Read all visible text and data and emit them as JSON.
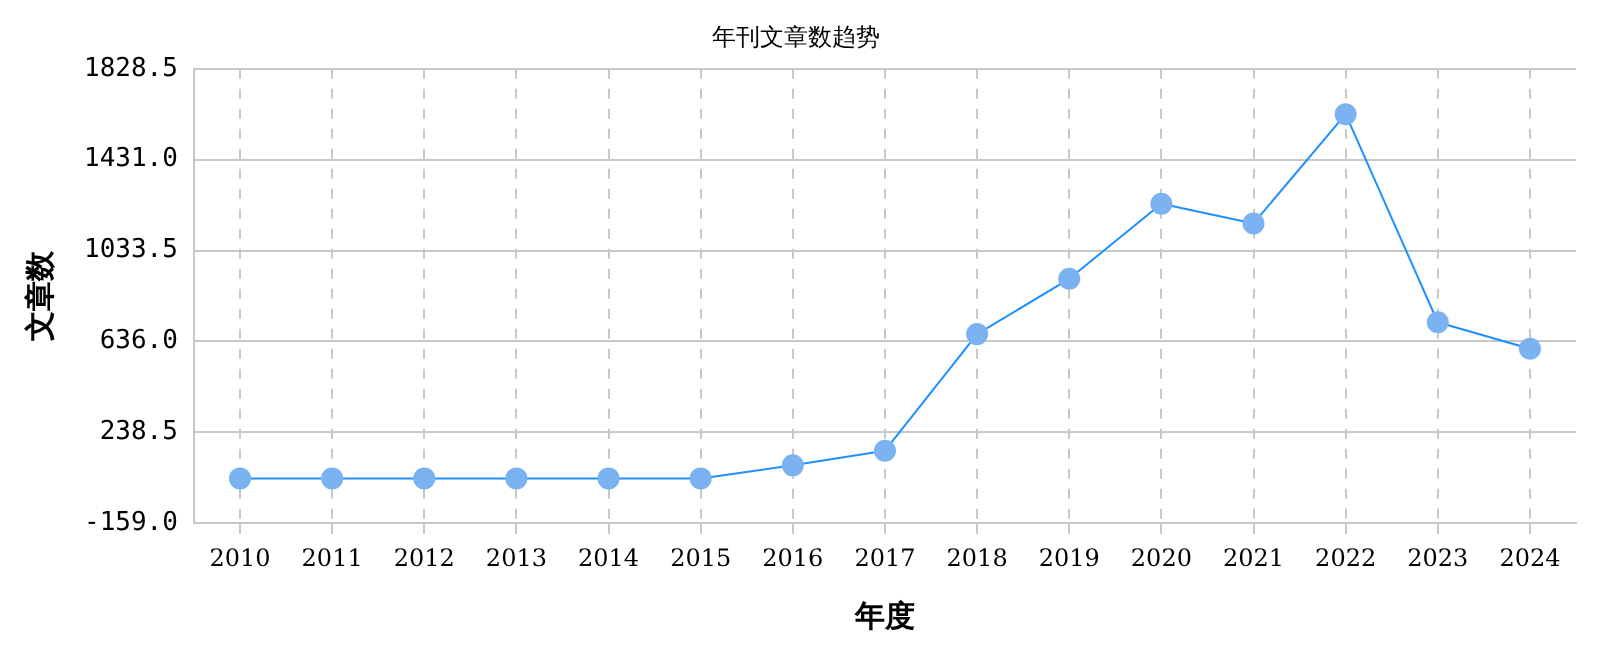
{
  "chart_data": {
    "type": "line",
    "title": "年刊文章数趋势",
    "xlabel": "年度",
    "ylabel": "文章数",
    "categories": [
      "2010",
      "2011",
      "2012",
      "2013",
      "2014",
      "2015",
      "2016",
      "2017",
      "2018",
      "2019",
      "2020",
      "2021",
      "2022",
      "2023",
      "2024"
    ],
    "series": [
      {
        "color": "#1e90ff",
        "values": [
          37,
          37,
          37,
          37,
          37,
          37,
          94,
          158,
          668,
          910,
          1238,
          1152,
          1630,
          720,
          604
        ]
      }
    ],
    "ylim": [
      -159.0,
      1828.5
    ],
    "yticks": [
      {
        "value": -159,
        "label": "-159.0"
      },
      {
        "value": 238.5,
        "label": "238.5"
      },
      {
        "value": 636,
        "label": "636.0"
      },
      {
        "value": 1033.5,
        "label": "1033.5"
      },
      {
        "value": 1431,
        "label": "1431.0"
      },
      {
        "value": 1828.5,
        "label": "1828.5"
      }
    ],
    "grid": true,
    "marker": "circle",
    "line_style": "solid",
    "legend": false
  }
}
